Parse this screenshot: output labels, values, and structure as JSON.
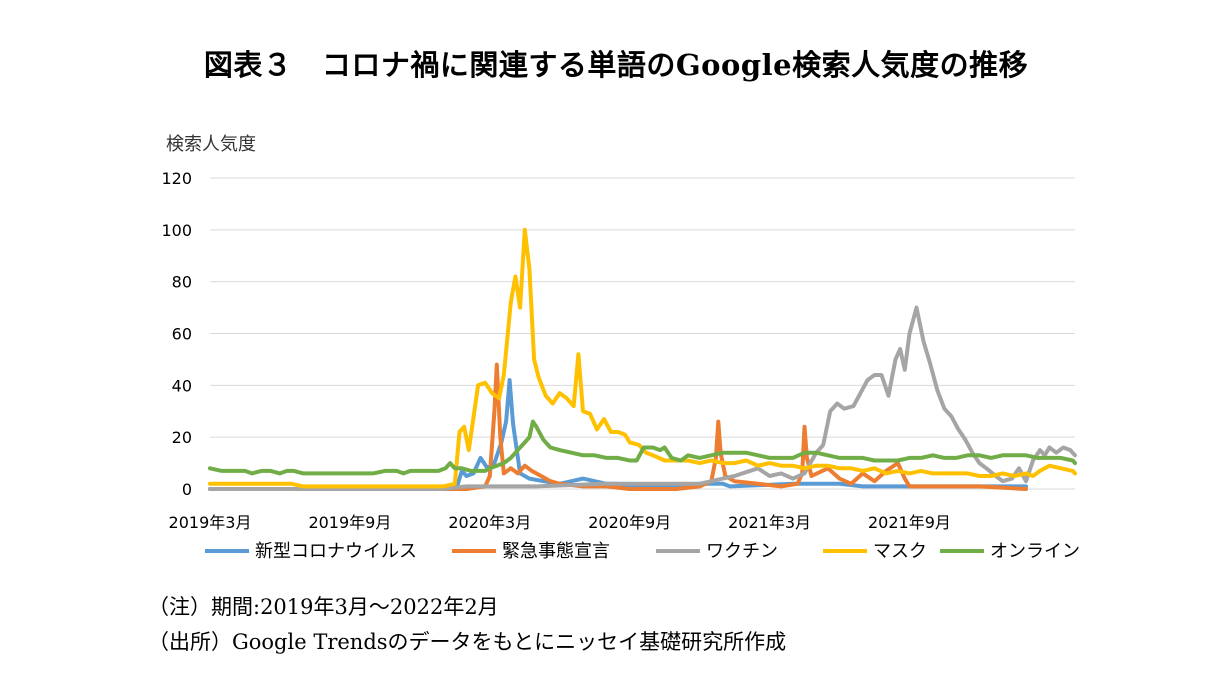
{
  "title": "図表３　コロナ禍に関連する単語のGoogle検索人気度の推移",
  "notes": {
    "period": "（注）期間:2019年3月～2022年2月",
    "source": "（出所）Google Trendsのデータをもとにニッセイ基礎研究所作成"
  },
  "chart_data": {
    "type": "line",
    "title": "",
    "xlabel": "",
    "ylabel": "検索人気度",
    "ylim": [
      0,
      120
    ],
    "yticks": [
      0,
      20,
      40,
      60,
      80,
      100,
      120
    ],
    "xlim": [
      "2019-03",
      "2022-02"
    ],
    "xticks": [
      "2019年3月",
      "2019年9月",
      "2020年3月",
      "2020年9月",
      "2021年3月",
      "2021年9月"
    ],
    "grid": true,
    "legend": "bottom",
    "series": [
      {
        "name": "新型コロナウイルス",
        "color": "#5B9BD5",
        "points": [
          [
            0,
            0
          ],
          [
            10.5,
            0
          ],
          [
            10.6,
            1
          ],
          [
            10.8,
            7
          ],
          [
            11.0,
            5
          ],
          [
            11.3,
            6
          ],
          [
            11.6,
            12
          ],
          [
            11.9,
            8
          ],
          [
            12.2,
            10
          ],
          [
            12.5,
            18
          ],
          [
            12.7,
            26
          ],
          [
            12.85,
            42
          ],
          [
            13.0,
            25
          ],
          [
            13.3,
            6
          ],
          [
            13.7,
            4
          ],
          [
            14.3,
            3
          ],
          [
            15.0,
            2
          ],
          [
            15.5,
            3
          ],
          [
            16.0,
            4
          ],
          [
            16.5,
            3
          ],
          [
            17.0,
            2
          ],
          [
            17.5,
            2
          ],
          [
            18.0,
            1
          ],
          [
            20.0,
            1
          ],
          [
            21.0,
            2
          ],
          [
            22.0,
            2
          ],
          [
            22.3,
            1
          ],
          [
            25.0,
            2
          ],
          [
            27.0,
            2
          ],
          [
            28.0,
            1
          ],
          [
            35.0,
            1
          ]
        ]
      },
      {
        "name": "緊急事態宣言",
        "color": "#ED7D31",
        "points": [
          [
            0,
            0
          ],
          [
            11.0,
            0
          ],
          [
            11.8,
            1
          ],
          [
            12.0,
            5
          ],
          [
            12.2,
            30
          ],
          [
            12.3,
            48
          ],
          [
            12.45,
            20
          ],
          [
            12.6,
            6
          ],
          [
            12.9,
            8
          ],
          [
            13.2,
            6
          ],
          [
            13.5,
            9
          ],
          [
            13.8,
            7
          ],
          [
            14.2,
            5
          ],
          [
            14.6,
            3
          ],
          [
            15.0,
            2
          ],
          [
            16.0,
            1
          ],
          [
            17.0,
            1
          ],
          [
            18.0,
            0
          ],
          [
            20.0,
            0
          ],
          [
            21.0,
            1
          ],
          [
            21.5,
            3
          ],
          [
            21.7,
            12
          ],
          [
            21.8,
            26
          ],
          [
            21.9,
            14
          ],
          [
            22.1,
            5
          ],
          [
            22.5,
            3
          ],
          [
            23.5,
            2
          ],
          [
            24.5,
            1
          ],
          [
            25.2,
            2
          ],
          [
            25.4,
            6
          ],
          [
            25.5,
            24
          ],
          [
            25.6,
            12
          ],
          [
            25.8,
            5
          ],
          [
            26.5,
            8
          ],
          [
            27.0,
            4
          ],
          [
            27.5,
            2
          ],
          [
            28.0,
            6
          ],
          [
            28.5,
            3
          ],
          [
            29.0,
            7
          ],
          [
            29.5,
            10
          ],
          [
            29.8,
            4
          ],
          [
            30.0,
            1
          ],
          [
            32.0,
            1
          ],
          [
            33.0,
            1
          ],
          [
            35.0,
            0
          ]
        ]
      },
      {
        "name": "ワクチン",
        "color": "#A5A5A5",
        "points": [
          [
            0,
            0
          ],
          [
            10.0,
            0
          ],
          [
            11.0,
            1
          ],
          [
            14.0,
            1
          ],
          [
            17.0,
            2
          ],
          [
            20.0,
            2
          ],
          [
            21.0,
            2
          ],
          [
            22.0,
            4
          ],
          [
            22.5,
            5
          ],
          [
            23.5,
            8
          ],
          [
            24.0,
            5
          ],
          [
            24.5,
            6
          ],
          [
            25.0,
            4
          ],
          [
            25.5,
            6
          ],
          [
            26.0,
            14
          ],
          [
            26.3,
            17
          ],
          [
            26.6,
            30
          ],
          [
            26.9,
            33
          ],
          [
            27.2,
            31
          ],
          [
            27.6,
            32
          ],
          [
            27.9,
            37
          ],
          [
            28.2,
            42
          ],
          [
            28.5,
            44
          ],
          [
            28.8,
            44
          ],
          [
            29.1,
            36
          ],
          [
            29.4,
            50
          ],
          [
            29.6,
            54
          ],
          [
            29.8,
            46
          ],
          [
            30.0,
            60
          ],
          [
            30.3,
            70
          ],
          [
            30.6,
            57
          ],
          [
            30.9,
            48
          ],
          [
            31.2,
            38
          ],
          [
            31.5,
            31
          ],
          [
            31.8,
            28
          ],
          [
            32.1,
            23
          ],
          [
            32.4,
            19
          ],
          [
            32.7,
            14
          ],
          [
            33.0,
            10
          ],
          [
            33.3,
            8
          ],
          [
            33.7,
            5
          ],
          [
            34.0,
            3
          ],
          [
            34.4,
            4
          ],
          [
            34.7,
            8
          ],
          [
            35.0,
            3
          ],
          [
            35.3,
            11
          ],
          [
            35.6,
            15
          ],
          [
            35.8,
            13
          ],
          [
            36.0,
            16
          ],
          [
            36.3,
            14
          ],
          [
            36.6,
            16
          ],
          [
            36.9,
            15
          ],
          [
            37.1,
            13
          ]
        ]
      },
      {
        "name": "マスク",
        "color": "#FFC000",
        "points": [
          [
            0,
            2
          ],
          [
            3.5,
            2
          ],
          [
            4.0,
            1
          ],
          [
            10.0,
            1
          ],
          [
            10.5,
            2
          ],
          [
            10.7,
            22
          ],
          [
            10.9,
            24
          ],
          [
            11.1,
            15
          ],
          [
            11.5,
            40
          ],
          [
            11.8,
            41
          ],
          [
            12.1,
            37
          ],
          [
            12.4,
            35
          ],
          [
            12.6,
            44
          ],
          [
            12.9,
            72
          ],
          [
            13.1,
            82
          ],
          [
            13.3,
            70
          ],
          [
            13.5,
            100
          ],
          [
            13.7,
            85
          ],
          [
            13.9,
            50
          ],
          [
            14.1,
            43
          ],
          [
            14.4,
            36
          ],
          [
            14.7,
            33
          ],
          [
            15.0,
            37
          ],
          [
            15.3,
            35
          ],
          [
            15.6,
            32
          ],
          [
            15.8,
            52
          ],
          [
            16.0,
            30
          ],
          [
            16.3,
            29
          ],
          [
            16.6,
            23
          ],
          [
            16.9,
            27
          ],
          [
            17.2,
            22
          ],
          [
            17.5,
            22
          ],
          [
            17.8,
            21
          ],
          [
            18.0,
            18
          ],
          [
            18.4,
            17
          ],
          [
            18.7,
            14
          ],
          [
            19.0,
            13
          ],
          [
            19.5,
            11
          ],
          [
            20.0,
            11
          ],
          [
            20.5,
            11
          ],
          [
            21.0,
            10
          ],
          [
            21.5,
            11
          ],
          [
            22.0,
            10
          ],
          [
            22.5,
            10
          ],
          [
            23.0,
            11
          ],
          [
            23.5,
            9
          ],
          [
            24.0,
            10
          ],
          [
            24.5,
            9
          ],
          [
            25.0,
            9
          ],
          [
            25.5,
            8
          ],
          [
            26.0,
            9
          ],
          [
            26.5,
            9
          ],
          [
            27.0,
            8
          ],
          [
            27.5,
            8
          ],
          [
            28.0,
            7
          ],
          [
            28.5,
            8
          ],
          [
            29.0,
            6
          ],
          [
            29.5,
            7
          ],
          [
            30.0,
            6
          ],
          [
            30.5,
            7
          ],
          [
            31.0,
            6
          ],
          [
            31.5,
            6
          ],
          [
            32.0,
            6
          ],
          [
            32.5,
            6
          ],
          [
            33.0,
            5
          ],
          [
            33.5,
            5
          ],
          [
            34.0,
            6
          ],
          [
            34.5,
            5
          ],
          [
            35.0,
            6
          ],
          [
            35.3,
            5
          ],
          [
            35.6,
            7
          ],
          [
            36.0,
            9
          ],
          [
            36.5,
            8
          ],
          [
            37.0,
            7
          ],
          [
            37.1,
            6
          ]
        ]
      },
      {
        "name": "オンライン",
        "color": "#70AD47",
        "points": [
          [
            0,
            8
          ],
          [
            0.5,
            7
          ],
          [
            1.0,
            7
          ],
          [
            1.5,
            7
          ],
          [
            1.8,
            6
          ],
          [
            2.2,
            7
          ],
          [
            2.6,
            7
          ],
          [
            3.0,
            6
          ],
          [
            3.3,
            7
          ],
          [
            3.6,
            7
          ],
          [
            4.0,
            6
          ],
          [
            5.0,
            6
          ],
          [
            6.0,
            6
          ],
          [
            7.0,
            6
          ],
          [
            7.5,
            7
          ],
          [
            8.0,
            7
          ],
          [
            8.3,
            6
          ],
          [
            8.6,
            7
          ],
          [
            9.0,
            7
          ],
          [
            9.5,
            7
          ],
          [
            9.8,
            7
          ],
          [
            10.1,
            8
          ],
          [
            10.3,
            10
          ],
          [
            10.5,
            8
          ],
          [
            10.8,
            8
          ],
          [
            11.2,
            7
          ],
          [
            11.5,
            7
          ],
          [
            11.8,
            7
          ],
          [
            12.0,
            8
          ],
          [
            12.3,
            9
          ],
          [
            12.6,
            10
          ],
          [
            12.9,
            12
          ],
          [
            13.2,
            15
          ],
          [
            13.5,
            18
          ],
          [
            13.7,
            20
          ],
          [
            13.85,
            26
          ],
          [
            14.0,
            24
          ],
          [
            14.3,
            19
          ],
          [
            14.6,
            16
          ],
          [
            15.0,
            15
          ],
          [
            15.5,
            14
          ],
          [
            16.0,
            13
          ],
          [
            16.5,
            13
          ],
          [
            17.0,
            12
          ],
          [
            17.5,
            12
          ],
          [
            18.0,
            11
          ],
          [
            18.3,
            11
          ],
          [
            18.6,
            16
          ],
          [
            19.0,
            16
          ],
          [
            19.3,
            15
          ],
          [
            19.5,
            16
          ],
          [
            19.8,
            12
          ],
          [
            20.2,
            11
          ],
          [
            20.5,
            13
          ],
          [
            21.0,
            12
          ],
          [
            21.5,
            13
          ],
          [
            22.0,
            14
          ],
          [
            22.5,
            14
          ],
          [
            23.0,
            14
          ],
          [
            23.5,
            13
          ],
          [
            24.0,
            12
          ],
          [
            24.5,
            12
          ],
          [
            25.0,
            12
          ],
          [
            25.5,
            14
          ],
          [
            26.0,
            14
          ],
          [
            26.5,
            13
          ],
          [
            27.0,
            12
          ],
          [
            27.5,
            12
          ],
          [
            28.0,
            12
          ],
          [
            28.5,
            11
          ],
          [
            29.0,
            11
          ],
          [
            29.5,
            11
          ],
          [
            30.0,
            12
          ],
          [
            30.5,
            12
          ],
          [
            31.0,
            13
          ],
          [
            31.5,
            12
          ],
          [
            32.0,
            12
          ],
          [
            32.5,
            13
          ],
          [
            33.0,
            13
          ],
          [
            33.5,
            12
          ],
          [
            34.0,
            13
          ],
          [
            34.5,
            13
          ],
          [
            35.0,
            13
          ],
          [
            35.5,
            12
          ],
          [
            36.0,
            12
          ],
          [
            36.5,
            12
          ],
          [
            37.0,
            11
          ],
          [
            37.1,
            10
          ]
        ]
      }
    ]
  }
}
